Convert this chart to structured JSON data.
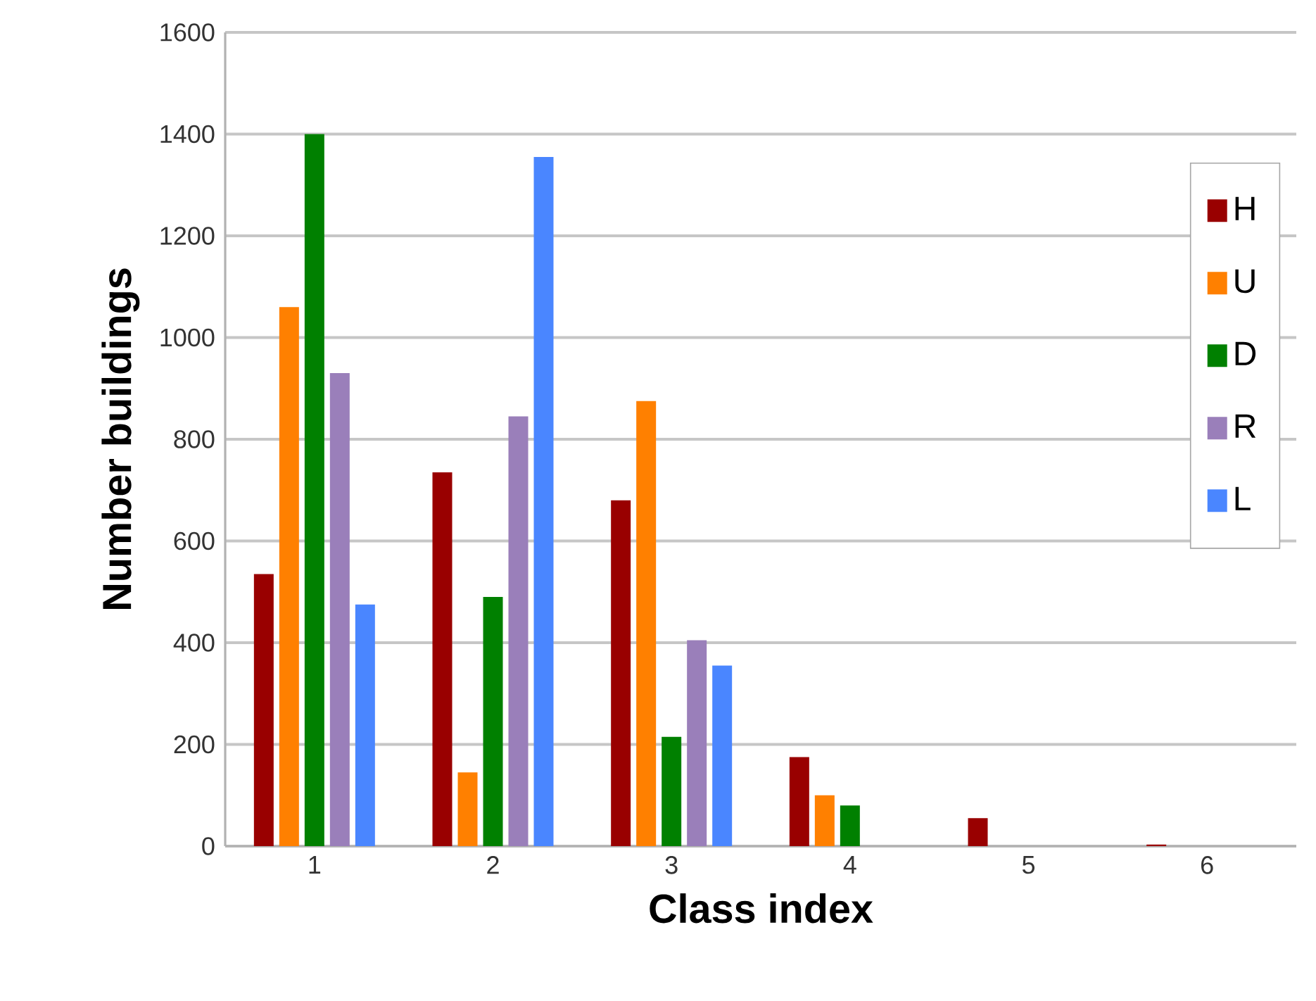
{
  "chart_data": {
    "type": "bar",
    "xlabel": "Class index",
    "ylabel": "Number buildings",
    "categories": [
      "1",
      "2",
      "3",
      "4",
      "5",
      "6"
    ],
    "series": [
      {
        "name": "H",
        "color": "#990000",
        "values": [
          535,
          735,
          680,
          175,
          55,
          3
        ]
      },
      {
        "name": "U",
        "color": "#ff8000",
        "values": [
          1060,
          145,
          875,
          100,
          0,
          0
        ]
      },
      {
        "name": "D",
        "color": "#008000",
        "values": [
          1400,
          490,
          215,
          80,
          0,
          0
        ]
      },
      {
        "name": "R",
        "color": "#9a7fba",
        "values": [
          930,
          845,
          405,
          0,
          0,
          0
        ]
      },
      {
        "name": "L",
        "color": "#4a86ff",
        "values": [
          475,
          1355,
          355,
          0,
          0,
          0
        ]
      }
    ],
    "ylim": [
      0,
      1600
    ],
    "yticks": [
      0,
      200,
      400,
      600,
      800,
      1000,
      1200,
      1400,
      1600
    ],
    "grid": "y",
    "legend": "right"
  }
}
